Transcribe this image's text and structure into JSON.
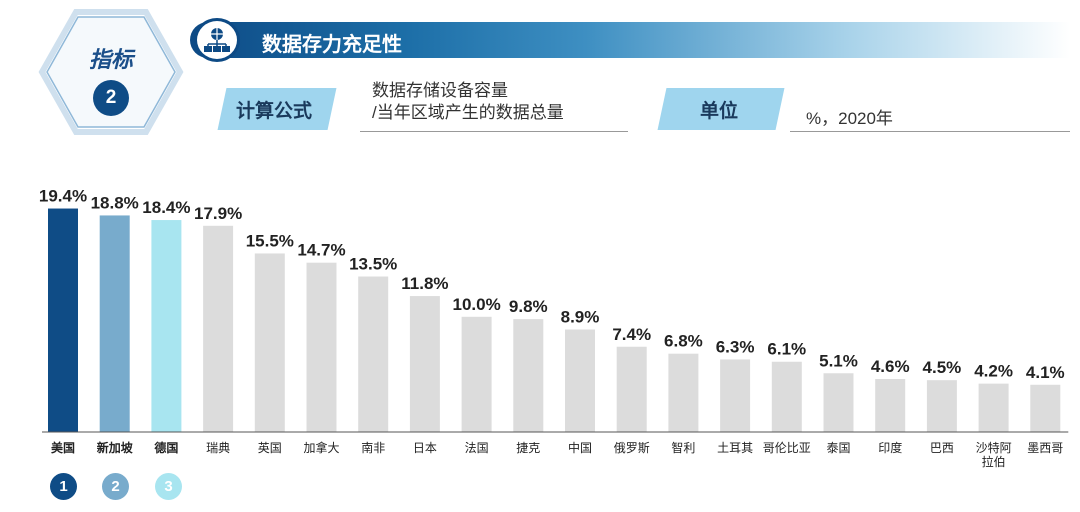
{
  "indicator": {
    "label": "指标",
    "number": "2"
  },
  "header": {
    "title": "数据存力充足性",
    "icon": "network-computers-icon"
  },
  "formula": {
    "tag": "计算公式",
    "numerator": "数据存储设备容量",
    "denominator": "/当年区域产生的数据总量"
  },
  "unit": {
    "tag": "单位",
    "value": "%，2020年"
  },
  "ranks": [
    "1",
    "2",
    "3"
  ],
  "colors": {
    "first": "#0f4c86",
    "second": "#78abcc",
    "third": "#a8e5f0",
    "other": "#dcdcdc"
  },
  "chart_data": {
    "type": "bar",
    "title": "数据存力充足性",
    "ylabel": "%",
    "ylim": [
      0,
      20
    ],
    "categories": [
      "美国",
      "新加坡",
      "德国",
      "瑞典",
      "英国",
      "加拿大",
      "南非",
      "日本",
      "法国",
      "捷克",
      "中国",
      "俄罗斯",
      "智利",
      "土耳其",
      "哥伦比亚",
      "泰国",
      "印度",
      "巴西",
      "沙特阿拉伯",
      "墨西哥"
    ],
    "category_lines": [
      [
        "美国"
      ],
      [
        "新加坡"
      ],
      [
        "德国"
      ],
      [
        "瑞典"
      ],
      [
        "英国"
      ],
      [
        "加拿大"
      ],
      [
        "南非"
      ],
      [
        "日本"
      ],
      [
        "法国"
      ],
      [
        "捷克"
      ],
      [
        "中国"
      ],
      [
        "俄罗斯"
      ],
      [
        "智利"
      ],
      [
        "土耳其"
      ],
      [
        "哥伦比亚"
      ],
      [
        "泰国"
      ],
      [
        "印度"
      ],
      [
        "巴西"
      ],
      [
        "沙特阿",
        "拉伯"
      ],
      [
        "墨西哥"
      ]
    ],
    "values": [
      19.4,
      18.8,
      18.4,
      17.9,
      15.5,
      14.7,
      13.5,
      11.8,
      10.0,
      9.8,
      8.9,
      7.4,
      6.8,
      6.3,
      6.1,
      5.1,
      4.6,
      4.5,
      4.2,
      4.1
    ],
    "value_labels": [
      "19.4%",
      "18.8%",
      "18.4%",
      "17.9%",
      "15.5%",
      "14.7%",
      "13.5%",
      "11.8%",
      "10.0%",
      "9.8%",
      "8.9%",
      "7.4%",
      "6.8%",
      "6.3%",
      "6.1%",
      "5.1%",
      "4.6%",
      "4.5%",
      "4.2%",
      "4.1%"
    ],
    "highlighted_top": 3
  }
}
